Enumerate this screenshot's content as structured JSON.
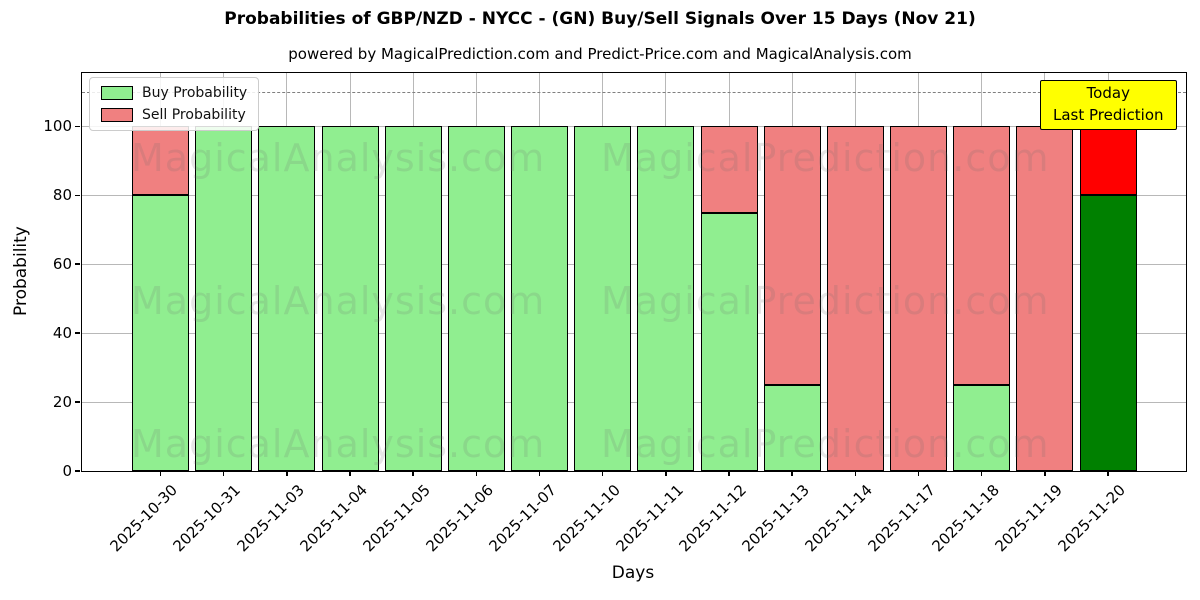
{
  "chart_data": {
    "type": "bar",
    "stacked": true,
    "title": "Probabilities of GBP/NZD - NYCC -  (GN) Buy/Sell Signals Over 15 Days (Nov 21)",
    "subtitle": "powered by MagicalPrediction.com and Predict-Price.com and MagicalAnalysis.com",
    "xlabel": "Days",
    "ylabel": "Probability",
    "categories": [
      "2025-10-30",
      "2025-10-31",
      "2025-11-03",
      "2025-11-04",
      "2025-11-05",
      "2025-11-06",
      "2025-11-07",
      "2025-11-10",
      "2025-11-11",
      "2025-11-12",
      "2025-11-13",
      "2025-11-14",
      "2025-11-17",
      "2025-11-18",
      "2025-11-19",
      "2025-11-20"
    ],
    "series": [
      {
        "name": "Buy Probability",
        "color": "#90EE90",
        "today_color": "#008000",
        "values": [
          80,
          100,
          100,
          100,
          100,
          100,
          100,
          100,
          100,
          75,
          25,
          0,
          0,
          25,
          0,
          80
        ]
      },
      {
        "name": "Sell Probability",
        "color": "#F08080",
        "today_color": "#FF0000",
        "values": [
          20,
          0,
          0,
          0,
          0,
          0,
          0,
          0,
          0,
          25,
          75,
          100,
          100,
          75,
          100,
          20
        ]
      }
    ],
    "today_index": 15,
    "yticks": [
      0,
      20,
      40,
      60,
      80,
      100
    ],
    "ylim": [
      0,
      115.5
    ],
    "grid": true,
    "dashed_line_y": 110,
    "legend_position": "upper left",
    "bar_edge_color": "#000000",
    "grid_color": "#B8B8B8",
    "annotation": {
      "line1": "Today",
      "line2": "Last Prediction",
      "bg": "#FFFF00"
    },
    "watermarks": {
      "left": "MagicalAnalysis.com",
      "right": "MagicalPrediction.com"
    }
  }
}
